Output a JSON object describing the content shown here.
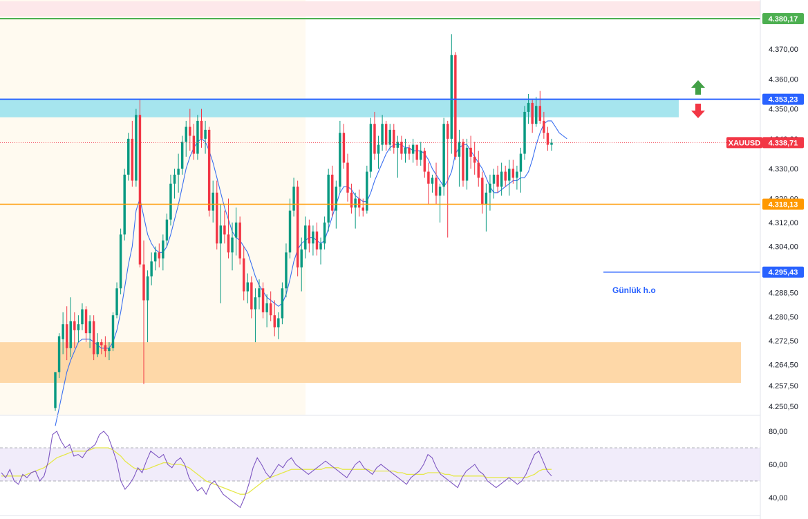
{
  "chart_data": [
    {
      "type": "candlestick",
      "instrument": "XAUUSD",
      "ylim": [
        4247,
        4383
      ],
      "y_ticks": [
        "4.370,00",
        "4.360,00",
        "4.350,00",
        "4.340,00",
        "4.330,00",
        "4.320,00",
        "4.312,00",
        "4.304,00",
        "4.288,50",
        "4.280,50",
        "4.272,50",
        "4.264,50",
        "4.257,50",
        "4.250,50"
      ],
      "last_price": {
        "value": 4338.71,
        "label": "4.338,71",
        "symbol_label": "XAUUSD",
        "color": "#f23645"
      },
      "levels": [
        {
          "name": "upper-resistance-line",
          "value": 4380.17,
          "label": "4.380,17",
          "color": "#4caf50"
        },
        {
          "name": "blue-resistance-line",
          "value": 4353.23,
          "label": "4.353,23",
          "color": "#2962ff"
        },
        {
          "name": "orange-support-line",
          "value": 4318.13,
          "label": "4.318,13",
          "color": "#ff9800"
        },
        {
          "name": "daily-open-line",
          "value": 4295.43,
          "label": "4.295,43",
          "color": "#2962ff",
          "note": "Günlük h.o"
        }
      ],
      "zones": [
        {
          "name": "top-red-zone",
          "from": 4380.9,
          "to": 4386,
          "color": "#fde8ea"
        },
        {
          "name": "cyan-resistance-zone",
          "from": 4347.2,
          "to": 4353.2,
          "color": "#a6e5ee"
        },
        {
          "name": "orange-demand-zone",
          "from": 4258.4,
          "to": 4272.0,
          "color": "#fed8a8"
        }
      ],
      "candles": [
        [
          4250,
          4262,
          4249,
          4262
        ],
        [
          4262,
          4275,
          4260,
          4274
        ],
        [
          4273,
          4282,
          4268,
          4278
        ],
        [
          4278,
          4284,
          4266,
          4270
        ],
        [
          4270,
          4287,
          4267,
          4279
        ],
        [
          4279,
          4282,
          4270,
          4276
        ],
        [
          4276,
          4281,
          4272,
          4278
        ],
        [
          4278,
          4285,
          4276,
          4283
        ],
        [
          4283,
          4284,
          4272,
          4275
        ],
        [
          4275,
          4281,
          4270,
          4279
        ],
        [
          4279,
          4281,
          4266,
          4268
        ],
        [
          4268,
          4275,
          4267,
          4272
        ],
        [
          4272,
          4273,
          4268,
          4271
        ],
        [
          4271,
          4274,
          4267,
          4269
        ],
        [
          4269,
          4272,
          4266,
          4270
        ],
        [
          4270,
          4282,
          4269,
          4281
        ],
        [
          4281,
          4292,
          4280,
          4290
        ],
        [
          4290,
          4310,
          4288,
          4308
        ],
        [
          4308,
          4330,
          4306,
          4328
        ],
        [
          4328,
          4342,
          4326,
          4340
        ],
        [
          4340,
          4346,
          4324,
          4326
        ],
        [
          4326,
          4350,
          4324,
          4348
        ],
        [
          4348,
          4353,
          4297,
          4298
        ],
        [
          4298,
          4306,
          4258,
          4286
        ],
        [
          4286,
          4296,
          4272,
          4294
        ],
        [
          4294,
          4302,
          4291,
          4299
        ],
        [
          4299,
          4304,
          4296,
          4302
        ],
        [
          4302,
          4305,
          4297,
          4300
        ],
        [
          4300,
          4308,
          4296,
          4306
        ],
        [
          4306,
          4315,
          4304,
          4313
        ],
        [
          4313,
          4328,
          4311,
          4325
        ],
        [
          4325,
          4330,
          4320,
          4328
        ],
        [
          4328,
          4335,
          4322,
          4330
        ],
        [
          4330,
          4341,
          4328,
          4339
        ],
        [
          4339,
          4346,
          4334,
          4344
        ],
        [
          4344,
          4350,
          4336,
          4341
        ],
        [
          4341,
          4345,
          4333,
          4335
        ],
        [
          4335,
          4348,
          4333,
          4346
        ],
        [
          4346,
          4350,
          4337,
          4340
        ],
        [
          4340,
          4346,
          4335,
          4343
        ],
        [
          4343,
          4344,
          4314,
          4316
        ],
        [
          4316,
          4326,
          4312,
          4322
        ],
        [
          4322,
          4326,
          4303,
          4305
        ],
        [
          4305,
          4318,
          4285,
          4311
        ],
        [
          4311,
          4316,
          4305,
          4308
        ],
        [
          4308,
          4320,
          4300,
          4302
        ],
        [
          4302,
          4312,
          4296,
          4307
        ],
        [
          4307,
          4317,
          4301,
          4312
        ],
        [
          4312,
          4314,
          4298,
          4300
        ],
        [
          4300,
          4304,
          4286,
          4289
        ],
        [
          4289,
          4295,
          4285,
          4292
        ],
        [
          4292,
          4294,
          4280,
          4283
        ],
        [
          4283,
          4290,
          4272,
          4287
        ],
        [
          4287,
          4293,
          4283,
          4290
        ],
        [
          4290,
          4292,
          4280,
          4282
        ],
        [
          4282,
          4288,
          4277,
          4285
        ],
        [
          4285,
          4289,
          4279,
          4281
        ],
        [
          4281,
          4286,
          4274,
          4277
        ],
        [
          4277,
          4282,
          4273,
          4280
        ],
        [
          4280,
          4292,
          4278,
          4290
        ],
        [
          4290,
          4305,
          4287,
          4302
        ],
        [
          4302,
          4320,
          4300,
          4316
        ],
        [
          4316,
          4327,
          4314,
          4324
        ],
        [
          4324,
          4326,
          4294,
          4297
        ],
        [
          4297,
          4307,
          4289,
          4303
        ],
        [
          4303,
          4314,
          4300,
          4311
        ],
        [
          4311,
          4313,
          4302,
          4305
        ],
        [
          4305,
          4311,
          4301,
          4309
        ],
        [
          4309,
          4312,
          4301,
          4303
        ],
        [
          4303,
          4307,
          4298,
          4305
        ],
        [
          4305,
          4314,
          4303,
          4312
        ],
        [
          4312,
          4330,
          4309,
          4328
        ],
        [
          4328,
          4331,
          4314,
          4316
        ],
        [
          4316,
          4326,
          4310,
          4324
        ],
        [
          4324,
          4346,
          4322,
          4342
        ],
        [
          4342,
          4345,
          4330,
          4332
        ],
        [
          4332,
          4335,
          4319,
          4322
        ],
        [
          4322,
          4325,
          4315,
          4317
        ],
        [
          4317,
          4322,
          4310,
          4320
        ],
        [
          4320,
          4323,
          4314,
          4317
        ],
        [
          4317,
          4320,
          4314,
          4316
        ],
        [
          4316,
          4331,
          4315,
          4329
        ],
        [
          4329,
          4347,
          4327,
          4345
        ],
        [
          4345,
          4349,
          4333,
          4335
        ],
        [
          4335,
          4341,
          4330,
          4338
        ],
        [
          4338,
          4348,
          4336,
          4345
        ],
        [
          4345,
          4346,
          4336,
          4338
        ],
        [
          4338,
          4345,
          4336,
          4343
        ],
        [
          4343,
          4345,
          4335,
          4337
        ],
        [
          4337,
          4341,
          4327,
          4339
        ],
        [
          4339,
          4341,
          4333,
          4335
        ],
        [
          4335,
          4340,
          4332,
          4337
        ],
        [
          4337,
          4338,
          4333,
          4335
        ],
        [
          4335,
          4340,
          4332,
          4338
        ],
        [
          4338,
          4338,
          4331,
          4333
        ],
        [
          4333,
          4339,
          4331,
          4336
        ],
        [
          4336,
          4337,
          4327,
          4329
        ],
        [
          4329,
          4332,
          4318,
          4325
        ],
        [
          4325,
          4328,
          4322,
          4327
        ],
        [
          4327,
          4332,
          4318,
          4321
        ],
        [
          4321,
          4325,
          4312,
          4324
        ],
        [
          4324,
          4347,
          4321,
          4345
        ],
        [
          4345,
          4346,
          4307,
          4340
        ],
        [
          4340,
          4375,
          4335,
          4368
        ],
        [
          4368,
          4369,
          4333,
          4334
        ],
        [
          4334,
          4343,
          4324,
          4339
        ],
        [
          4339,
          4340,
          4324,
          4326
        ],
        [
          4326,
          4340,
          4323,
          4337
        ],
        [
          4337,
          4341,
          4330,
          4334
        ],
        [
          4334,
          4339,
          4328,
          4332
        ],
        [
          4332,
          4336,
          4324,
          4327
        ],
        [
          4327,
          4329,
          4315,
          4318
        ],
        [
          4318,
          4325,
          4309,
          4322
        ],
        [
          4322,
          4328,
          4316,
          4325
        ],
        [
          4325,
          4330,
          4320,
          4328
        ],
        [
          4328,
          4331,
          4322,
          4324
        ],
        [
          4324,
          4332,
          4321,
          4329
        ],
        [
          4329,
          4331,
          4324,
          4326
        ],
        [
          4326,
          4333,
          4321,
          4330
        ],
        [
          4330,
          4333,
          4325,
          4327
        ],
        [
          4327,
          4331,
          4323,
          4329
        ],
        [
          4329,
          4337,
          4322,
          4335
        ],
        [
          4335,
          4351,
          4333,
          4349
        ],
        [
          4349,
          4355,
          4345,
          4352
        ],
        [
          4352,
          4353,
          4342,
          4345
        ],
        [
          4345,
          4354,
          4344,
          4351
        ],
        [
          4351,
          4356,
          4345,
          4346
        ],
        [
          4346,
          4349,
          4340,
          4342
        ],
        [
          4342,
          4344,
          4336,
          4338
        ],
        [
          4338,
          4340,
          4336,
          4338.71
        ]
      ],
      "moving_average": [
        4244,
        4250,
        4256,
        4262,
        4266,
        4269,
        4272,
        4273,
        4273,
        4273,
        4272,
        4271,
        4270,
        4270,
        4270,
        4272,
        4276,
        4282,
        4290,
        4298,
        4304,
        4316,
        4320,
        4314,
        4308,
        4305,
        4303,
        4302,
        4302,
        4304,
        4308,
        4313,
        4318,
        4324,
        4330,
        4334,
        4337,
        4339,
        4340,
        4339,
        4336,
        4332,
        4327,
        4322,
        4317,
        4313,
        4309,
        4307,
        4306,
        4304,
        4302,
        4298,
        4294,
        4291,
        4289,
        4287,
        4286,
        4285,
        4284,
        4285,
        4288,
        4293,
        4299,
        4303,
        4305,
        4306,
        4307,
        4307,
        4306,
        4305,
        4306,
        4310,
        4314,
        4318,
        4322,
        4324,
        4324,
        4323,
        4321,
        4320,
        4319,
        4319,
        4322,
        4326,
        4329,
        4332,
        4335,
        4337,
        4338,
        4338,
        4338,
        4337,
        4337,
        4336,
        4336,
        4336,
        4335,
        4333,
        4330,
        4328,
        4326,
        4324,
        4326,
        4329,
        4335,
        4337,
        4338,
        4338,
        4336,
        4334,
        4332,
        4330,
        4327,
        4324,
        4322,
        4322,
        4323,
        4324,
        4325,
        4326,
        4326,
        4327,
        4327,
        4329,
        4333,
        4338,
        4342,
        4345,
        4346,
        4346,
        4344,
        4342,
        4341,
        4340
      ]
    },
    {
      "type": "line",
      "name": "RSI",
      "ylim": [
        35,
        90
      ],
      "y_ticks": [
        "80,00",
        "60,00",
        "40,00"
      ],
      "band": [
        50,
        70
      ],
      "rsi": [
        55,
        52,
        57,
        50,
        48,
        54,
        52,
        55,
        56,
        50,
        53,
        62,
        78,
        80,
        74,
        70,
        72,
        65,
        66,
        64,
        68,
        70,
        72,
        78,
        80,
        77,
        70,
        62,
        50,
        45,
        48,
        52,
        58,
        55,
        62,
        68,
        66,
        64,
        66,
        60,
        58,
        62,
        64,
        60,
        52,
        48,
        44,
        46,
        42,
        48,
        50,
        46,
        42,
        40,
        38,
        36,
        34,
        40,
        48,
        58,
        64,
        60,
        55,
        52,
        56,
        60,
        58,
        62,
        64,
        60,
        58,
        56,
        54,
        56,
        58,
        60,
        62,
        60,
        58,
        56,
        54,
        52,
        56,
        60,
        62,
        58,
        56,
        54,
        58,
        60,
        58,
        56,
        54,
        52,
        50,
        48,
        52,
        54,
        56,
        60,
        66,
        64,
        58,
        54,
        52,
        50,
        48,
        46,
        52,
        56,
        58,
        60,
        56,
        54,
        50,
        48,
        46,
        48,
        50,
        52,
        50,
        48,
        50,
        54,
        60,
        66,
        68,
        62,
        56,
        53
      ],
      "signal": [
        53,
        53,
        53,
        53,
        53,
        53,
        54,
        55,
        56,
        57,
        58,
        60,
        62,
        64,
        65,
        66,
        67,
        68,
        68,
        68,
        68,
        69,
        70,
        70,
        70,
        70,
        69,
        67,
        65,
        62,
        60,
        58,
        57,
        57,
        57,
        58,
        59,
        60,
        61,
        61,
        60,
        60,
        60,
        59,
        58,
        56,
        54,
        52,
        50,
        49,
        48,
        47,
        46,
        45,
        44,
        43,
        42,
        42,
        43,
        45,
        47,
        49,
        51,
        52,
        53,
        54,
        55,
        56,
        57,
        57,
        57,
        57,
        57,
        57,
        57,
        57,
        58,
        58,
        58,
        58,
        57,
        57,
        57,
        57,
        57,
        57,
        57,
        56,
        56,
        56,
        56,
        56,
        56,
        55,
        55,
        54,
        54,
        54,
        54,
        54,
        55,
        55,
        55,
        55,
        54,
        54,
        53,
        53,
        53,
        53,
        53,
        53,
        53,
        53,
        52,
        52,
        52,
        52,
        52,
        52,
        52,
        52,
        52,
        52,
        53,
        54,
        56,
        57,
        57,
        57
      ],
      "colors": {
        "rsi": "#7e57c2",
        "signal": "#e5e84a",
        "band_fill": "#f1ecfa"
      }
    }
  ],
  "annotations": {
    "daily_open_note": "Günlük h.o"
  },
  "colors": {
    "up": "#089981",
    "down": "#f23645",
    "ma": "#3a6ff0",
    "up_arrow": "#43a047",
    "down_arrow": "#f23645",
    "session_shade": "#fffaf0"
  }
}
